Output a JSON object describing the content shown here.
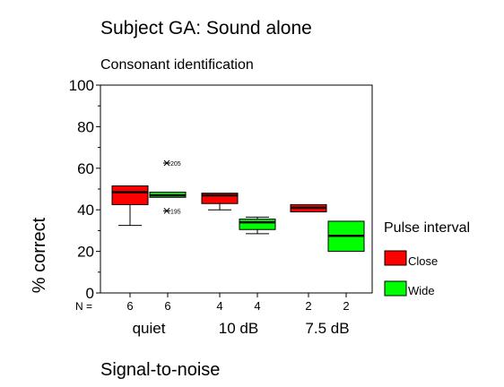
{
  "chart_data": {
    "type": "box",
    "title": "Subject GA: Sound alone",
    "subtitle": "Consonant identification",
    "ylabel": "% correct",
    "xlabel": "Signal-to-noise",
    "ylim": [
      0,
      100
    ],
    "yticks": [
      0,
      20,
      40,
      60,
      80,
      100
    ],
    "n_label": "N =",
    "categories": [
      "quiet",
      "10 dB",
      "7.5 dB"
    ],
    "legend": {
      "title": "Pulse interval",
      "position": "right",
      "entries": [
        {
          "name": "Close",
          "color": "#ff0000"
        },
        {
          "name": "Wide",
          "color": "#00ff00"
        }
      ]
    },
    "boxes": [
      {
        "group": 0,
        "series": "Close",
        "n": "6",
        "whisker_low": 32.5,
        "q1": 42.5,
        "median": 48.5,
        "q3": 51.5,
        "whisker_high": 51.5
      },
      {
        "group": 0,
        "series": "Wide",
        "n": "6",
        "whisker_low": 46.0,
        "q1": 46.0,
        "median": 47.0,
        "q3": 48.5,
        "whisker_high": 48.5,
        "outliers": [
          {
            "y": 62.5,
            "label": "205"
          },
          {
            "y": 39.5,
            "label": "195"
          }
        ]
      },
      {
        "group": 1,
        "series": "Close",
        "n": "4",
        "whisker_low": 40.0,
        "q1": 43.0,
        "median": 47.0,
        "q3": 48.0,
        "whisker_high": 48.0
      },
      {
        "group": 1,
        "series": "Wide",
        "n": "4",
        "whisker_low": 28.5,
        "q1": 30.5,
        "median": 34.0,
        "q3": 35.5,
        "whisker_high": 36.5
      },
      {
        "group": 2,
        "series": "Close",
        "n": "2",
        "whisker_low": 39.0,
        "q1": 39.0,
        "median": 41.0,
        "q3": 42.5,
        "whisker_high": 42.5
      },
      {
        "group": 2,
        "series": "Wide",
        "n": "2",
        "whisker_low": 20.0,
        "q1": 20.0,
        "median": 27.5,
        "q3": 34.5,
        "whisker_high": 34.5
      }
    ]
  }
}
